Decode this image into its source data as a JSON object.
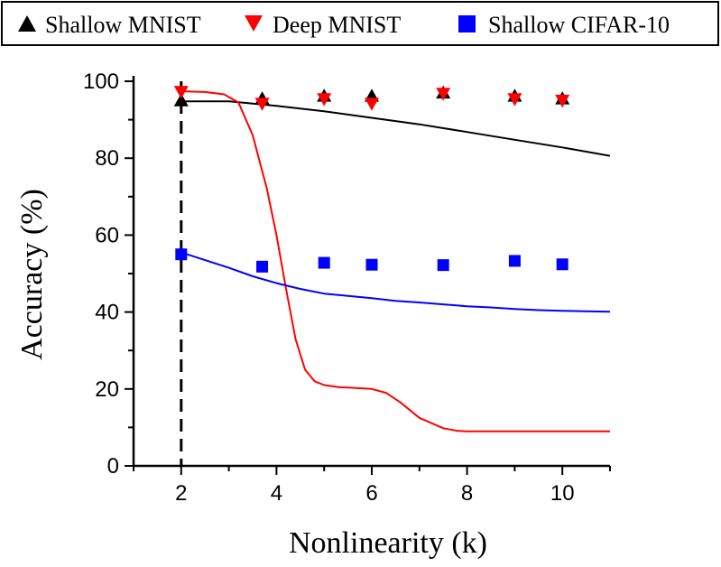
{
  "chart_data": {
    "type": "scatter",
    "title": "",
    "xlabel": "Nonlinearity (k)",
    "ylabel": "Accuracy (%)",
    "xlim": [
      1,
      11
    ],
    "ylim": [
      0,
      100
    ],
    "xticks": [
      2,
      4,
      6,
      8,
      10
    ],
    "yticks": [
      0,
      20,
      40,
      60,
      80,
      100
    ],
    "legend_position": "top",
    "reference_line_x": 2,
    "series": [
      {
        "name": "Shallow MNIST",
        "color": "#000000",
        "marker": "triangle-up",
        "points": [
          [
            2,
            95
          ],
          [
            3.7,
            95.5
          ],
          [
            5,
            96.2
          ],
          [
            6,
            96.2
          ],
          [
            7.5,
            97
          ],
          [
            9,
            96.2
          ],
          [
            10,
            95.5
          ]
        ],
        "curve": [
          [
            2,
            94.8
          ],
          [
            3,
            94.8
          ],
          [
            4,
            93.6
          ],
          [
            5,
            92.2
          ],
          [
            6,
            90.5
          ],
          [
            7,
            88.8
          ],
          [
            8,
            86.8
          ],
          [
            9,
            84.8
          ],
          [
            10,
            82.8
          ],
          [
            11,
            80.6
          ]
        ]
      },
      {
        "name": "Deep MNIST",
        "color": "#ff0000",
        "marker": "triangle-down",
        "points": [
          [
            2,
            97.3
          ],
          [
            3.7,
            94.2
          ],
          [
            5,
            95.4
          ],
          [
            6,
            94.2
          ],
          [
            7.5,
            96.8
          ],
          [
            9,
            95.4
          ],
          [
            10,
            95
          ]
        ],
        "curve": [
          [
            2,
            97.4
          ],
          [
            2.5,
            97.2
          ],
          [
            2.9,
            96.6
          ],
          [
            3.2,
            94.5
          ],
          [
            3.5,
            86
          ],
          [
            3.8,
            72
          ],
          [
            4,
            60
          ],
          [
            4.2,
            46
          ],
          [
            4.4,
            33
          ],
          [
            4.6,
            25
          ],
          [
            4.8,
            22
          ],
          [
            5,
            21
          ],
          [
            5.3,
            20.5
          ],
          [
            6,
            20
          ],
          [
            6.3,
            19
          ],
          [
            6.6,
            16.5
          ],
          [
            7,
            12.5
          ],
          [
            7.5,
            9.8
          ],
          [
            7.8,
            9.1
          ],
          [
            8,
            9
          ],
          [
            11,
            9
          ]
        ]
      },
      {
        "name": "Shallow CIFAR-10",
        "color": "#0000ff",
        "marker": "square",
        "points": [
          [
            2,
            55
          ],
          [
            3.7,
            51.8
          ],
          [
            5,
            52.8
          ],
          [
            6,
            52.3
          ],
          [
            7.5,
            52.2
          ],
          [
            9,
            53.3
          ],
          [
            10,
            52.4
          ]
        ],
        "curve": [
          [
            2,
            55.5
          ],
          [
            2.5,
            53.5
          ],
          [
            3,
            51.5
          ],
          [
            3.5,
            49.3
          ],
          [
            4,
            47.5
          ],
          [
            4.5,
            46
          ],
          [
            5,
            44.8
          ],
          [
            5.5,
            44.2
          ],
          [
            6,
            43.6
          ],
          [
            6.5,
            42.9
          ],
          [
            7,
            42.5
          ],
          [
            7.5,
            42
          ],
          [
            8,
            41.5
          ],
          [
            8.5,
            41.2
          ],
          [
            9,
            40.8
          ],
          [
            9.5,
            40.5
          ],
          [
            10,
            40.3
          ],
          [
            11,
            40.1
          ]
        ]
      }
    ]
  }
}
